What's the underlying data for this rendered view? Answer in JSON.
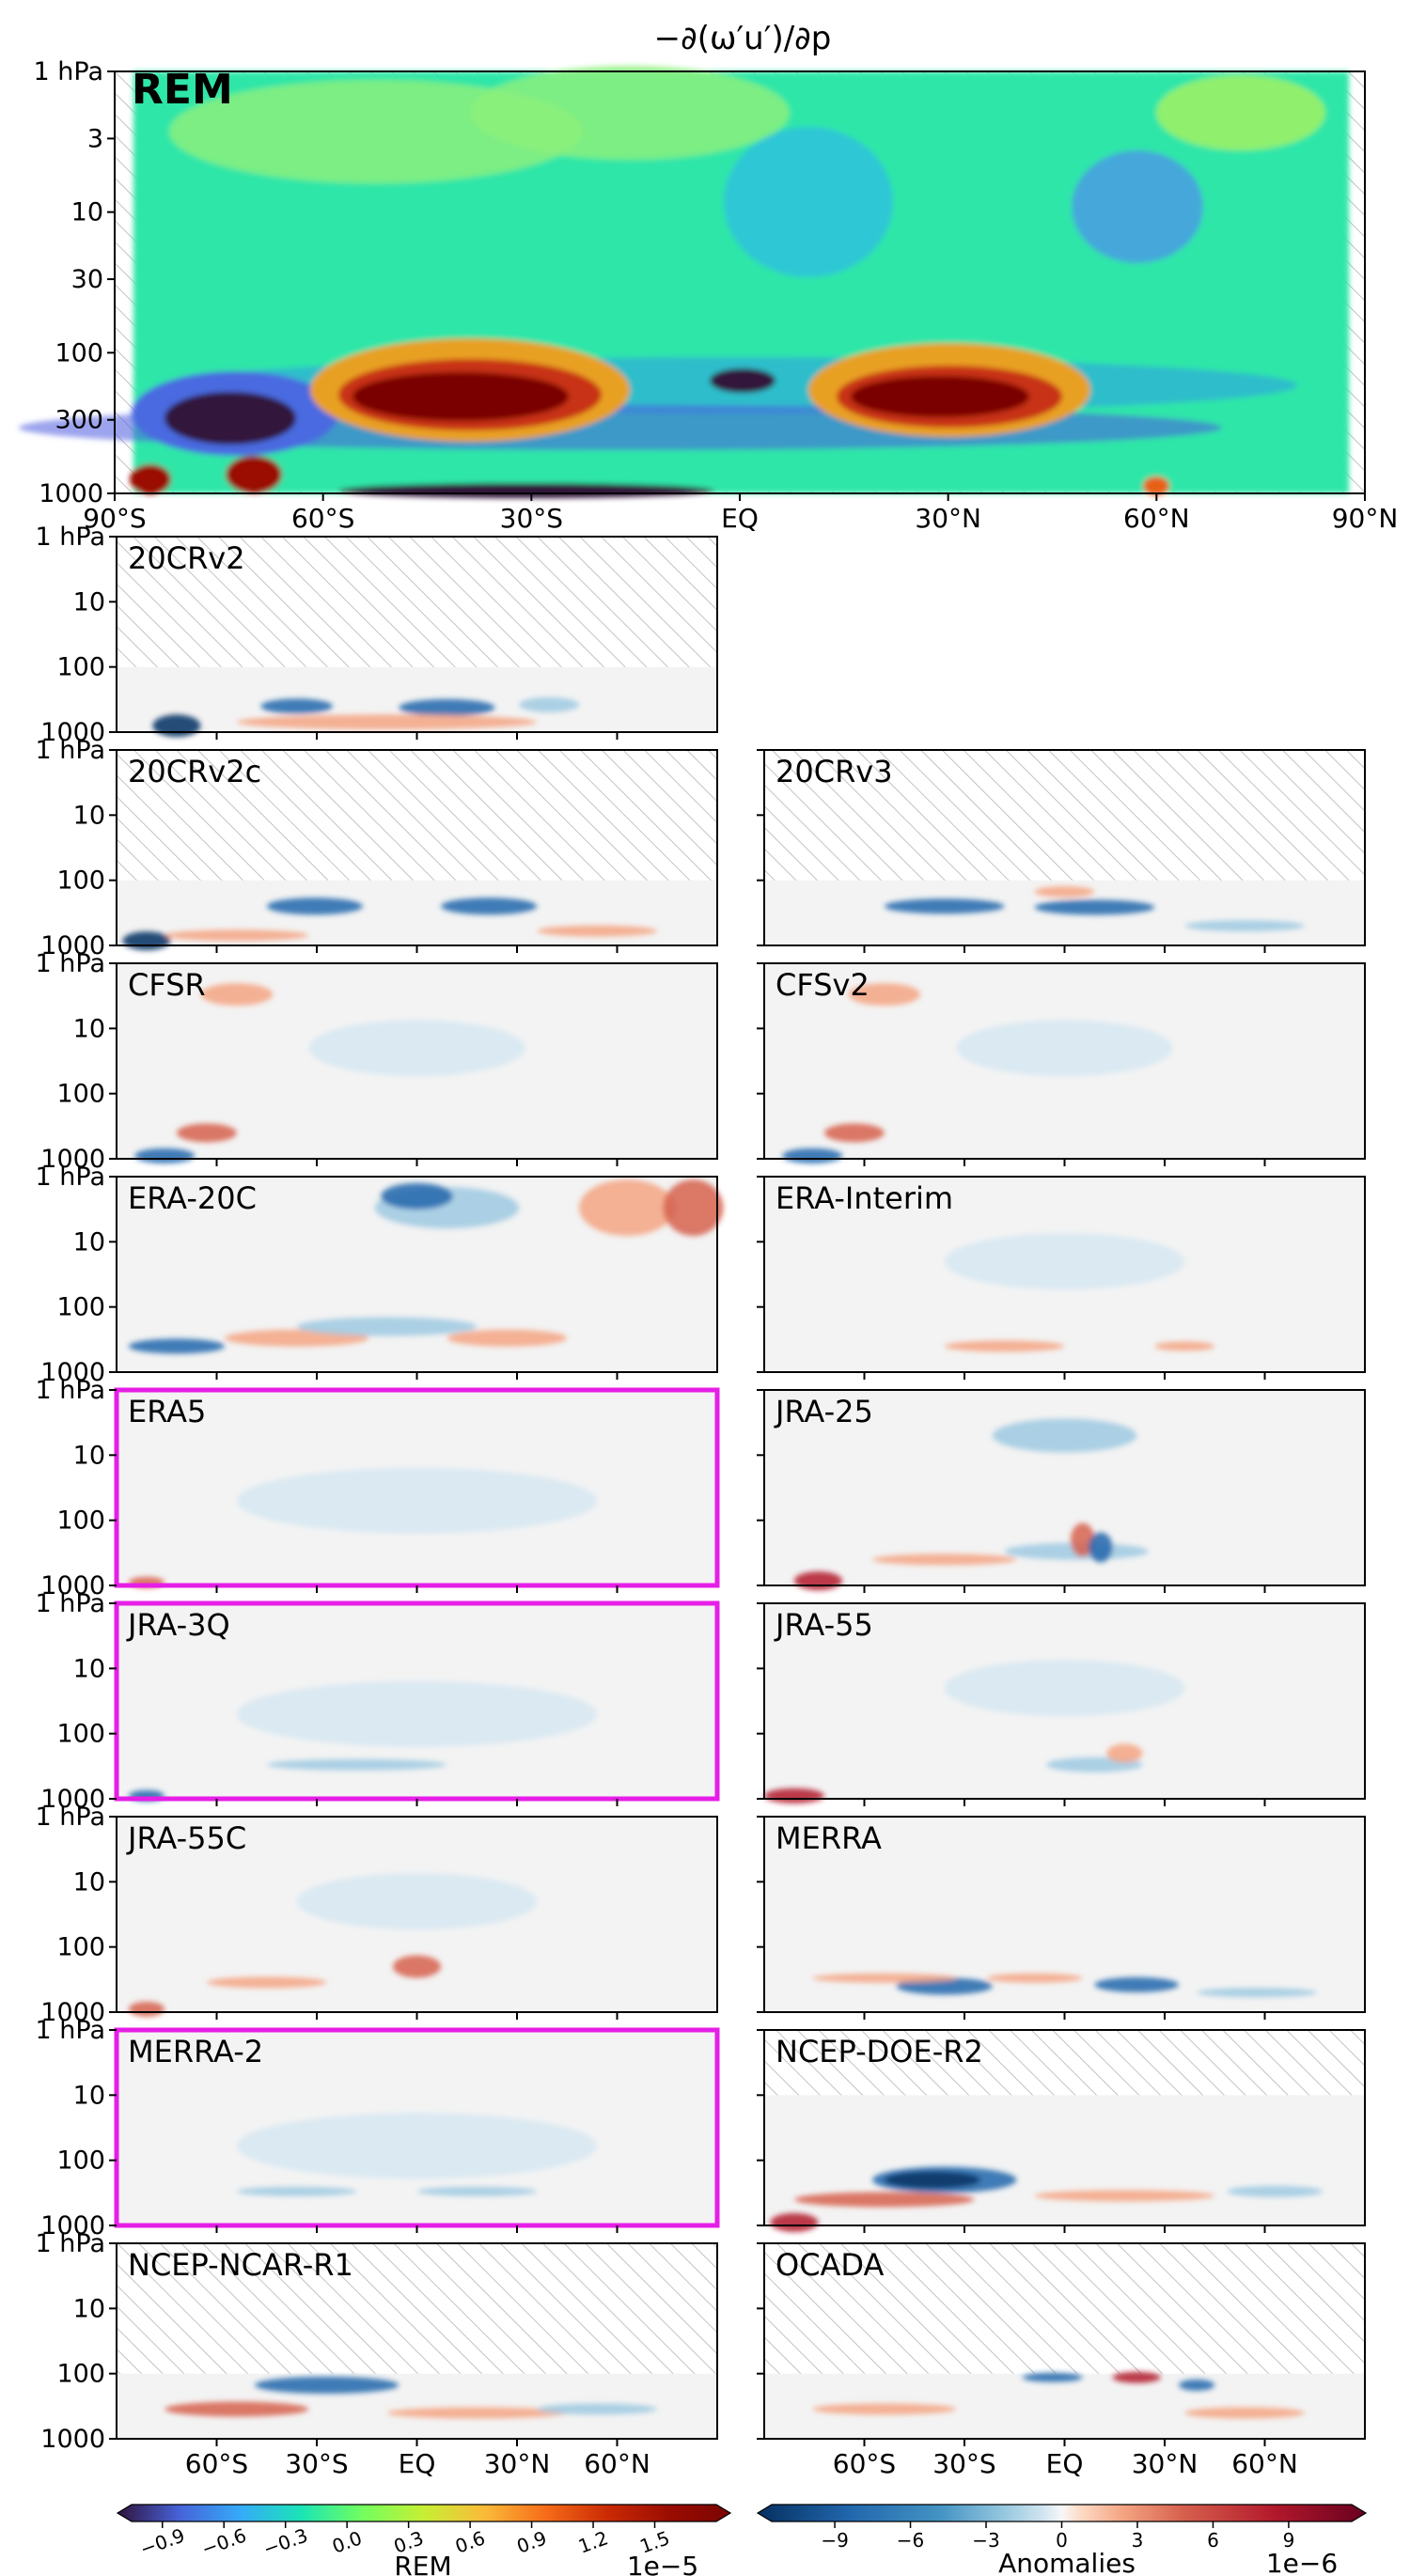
{
  "figure": {
    "title": "−∂(ω′u′)/∂p"
  },
  "colors": {
    "highlight": "#e61ee6",
    "rem_label": "#e830e8",
    "hatch": "#b4b4b4",
    "frame": "#000000"
  },
  "chart_data": [
    {
      "type": "heatmap",
      "name": "REM",
      "title": "−∂(ω′u′)/∂p",
      "x_ticks": [
        "90°S",
        "60°S",
        "30°S",
        "EQ",
        "30°N",
        "60°N",
        "90°N"
      ],
      "x_range": [
        -90,
        90
      ],
      "y_ticks": [
        "1 hPa",
        "3",
        "10",
        "30",
        "100",
        "300",
        "1000"
      ],
      "y_range_hPa": [
        1000,
        1
      ],
      "y_scale": "log",
      "colormap": "turbo",
      "colorbar": {
        "label": "REM",
        "ticks": [
          "−0.9",
          "−0.6",
          "−0.3",
          "0.0",
          "0.3",
          "0.6",
          "0.9",
          "1.2",
          "1.5"
        ],
        "exponent": "1e−5"
      }
    },
    {
      "type": "heatmap",
      "name": "Anomalies",
      "colormap": "RdBu_r",
      "x_ticks": [
        "60°S",
        "30°S",
        "EQ",
        "30°N",
        "60°N"
      ],
      "y_ticks": [
        "1 hPa",
        "10",
        "100",
        "1000"
      ],
      "y_scale": "log",
      "colorbar": {
        "label": "Anomalies",
        "ticks": [
          "−9",
          "−6",
          "−3",
          "0",
          "3",
          "6",
          "9"
        ],
        "exponent": "1e−6"
      },
      "panels": [
        {
          "label": "20CRv2",
          "top_hPa": 100,
          "highlight": false
        },
        {
          "label": "20CRv2c",
          "top_hPa": 100,
          "highlight": false
        },
        {
          "label": "20CRv3",
          "top_hPa": 100,
          "highlight": false
        },
        {
          "label": "CFSR",
          "top_hPa": 1,
          "highlight": false
        },
        {
          "label": "CFSv2",
          "top_hPa": 1,
          "highlight": false
        },
        {
          "label": "ERA-20C",
          "top_hPa": 1,
          "highlight": false
        },
        {
          "label": "ERA-Interim",
          "top_hPa": 1,
          "highlight": false
        },
        {
          "label": "ERA5",
          "top_hPa": 1,
          "highlight": true
        },
        {
          "label": "JRA-25",
          "top_hPa": 1,
          "highlight": false
        },
        {
          "label": "JRA-3Q",
          "top_hPa": 1,
          "highlight": true
        },
        {
          "label": "JRA-55",
          "top_hPa": 1,
          "highlight": false
        },
        {
          "label": "JRA-55C",
          "top_hPa": 1,
          "highlight": false
        },
        {
          "label": "MERRA",
          "top_hPa": 1,
          "highlight": false
        },
        {
          "label": "MERRA-2",
          "top_hPa": 1,
          "highlight": true
        },
        {
          "label": "NCEP-DOE-R2",
          "top_hPa": 10,
          "highlight": false
        },
        {
          "label": "NCEP-NCAR-R1",
          "top_hPa": 100,
          "highlight": false
        },
        {
          "label": "OCADA",
          "top_hPa": 100,
          "highlight": false
        }
      ]
    }
  ]
}
